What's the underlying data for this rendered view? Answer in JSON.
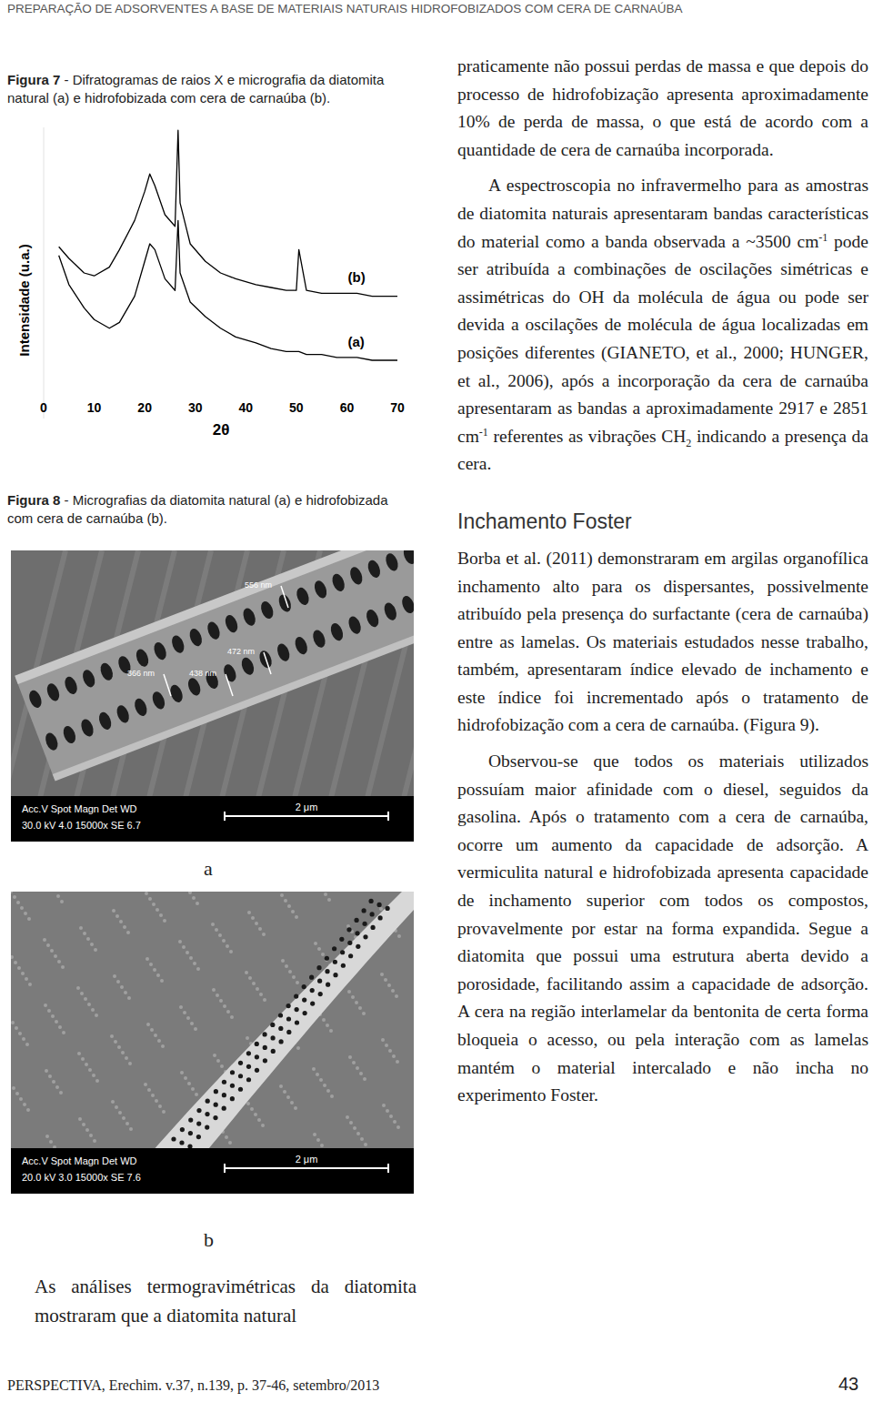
{
  "header": {
    "running_title": "PREPARAÇÃO DE ADSORVENTES A BASE DE MATERIAIS NATURAIS HIDROFOBIZADOS COM CERA DE CARNAÚBA"
  },
  "figure7": {
    "caption": {
      "label": "Figura 7",
      "text": " - Difratogramas de raios X e micrografia da diatomita natural (a) e hidrofobizada com cera de carnaúba (b)."
    }
  },
  "chart_data": {
    "type": "line",
    "x_label": "2θ",
    "y_label": "Intensidade (u.a.)",
    "x": [
      3,
      5,
      8,
      10,
      13,
      15,
      18,
      20,
      21,
      22,
      24,
      26,
      26.6,
      27,
      29,
      32,
      35,
      38,
      40,
      42,
      45,
      48,
      50,
      50.5,
      52,
      55,
      58,
      60,
      62,
      65,
      68,
      70
    ],
    "series": [
      {
        "name": "(b)",
        "color": "#000000",
        "values": [
          59,
          55,
          50,
          49,
          52,
          58,
          68,
          78,
          84,
          80,
          70,
          66,
          99,
          74,
          60,
          54,
          50,
          48,
          47,
          46,
          45,
          44,
          44,
          58,
          44,
          43,
          43,
          43,
          43,
          42,
          42,
          42
        ]
      },
      {
        "name": "(a)",
        "color": "#000000",
        "values": [
          56,
          46,
          38,
          34,
          31,
          33,
          42,
          54,
          60,
          58,
          48,
          44,
          68,
          50,
          40,
          35,
          31,
          28,
          27,
          26,
          24,
          23,
          23,
          23,
          22,
          22,
          21,
          21,
          21,
          20,
          20,
          20
        ]
      }
    ],
    "xlim": [
      0,
      70
    ],
    "xticks": [
      0,
      10,
      20,
      30,
      40,
      50,
      60,
      70
    ],
    "ylim": [
      0,
      100
    ],
    "tick_labels": "x",
    "grid": false
  },
  "figure8": {
    "caption": {
      "label": "Figura 8",
      "text": " - Micrografias da diatomita natural (a) e hidrofobizada com cera de carnaúba (b)."
    },
    "panels": [
      {
        "label": "a",
        "info_header": "Acc.V  Spot Magn   Det  WD",
        "info_values": "30.0 kV 4.0  15000x  SE  6.7",
        "scale_bar": "2 μm",
        "measurements": [
          "366 nm",
          "438 nm",
          "472 nm",
          "556 nm"
        ]
      },
      {
        "label": "b",
        "info_header": "Acc.V  Spot Magn   Det  WD",
        "info_values": "20.0 kV 3.0  15000x  SE  7.6",
        "scale_bar": "2 μm"
      }
    ]
  },
  "left_paragraph": "As análises termogravimétricas da diatomita mostraram que a diatomita natural",
  "right_column": [
    {
      "style": "paragraph",
      "runs": [
        {
          "text": "praticamente não possui perdas de massa e que depois do processo de hidrofobização apresenta aproximadamente 10% de perda de massa, o que está de acordo com a quantidade de cera de carnaúba incorporada."
        }
      ]
    },
    {
      "style": "indented",
      "runs": [
        {
          "text": "A espectroscopia no infravermelho para as amostras de diatomita naturais apresentaram bandas características do material como a banda observada a ~3500 cm"
        },
        {
          "text": "-1",
          "style": "sup"
        },
        {
          "text": " pode ser atribuída a combinações de oscilações simétricas e assimétricas do OH da molécula de água ou pode ser devida a oscilações de molécula de água localizadas em posições diferentes (GIANETO, et al., 2000; HUNGER, et al., 2006), após a incorporação da cera de carnaúba apresentaram as bandas a aproximadamente 2917 e 2851 cm"
        },
        {
          "text": "-1",
          "style": "sup"
        },
        {
          "text": " referentes as vibrações CH"
        },
        {
          "text": "2",
          "style": "sub"
        },
        {
          "text": " indicando a presença da cera."
        }
      ]
    },
    {
      "style": "heading",
      "runs": [
        {
          "text": "Inchamento Foster"
        }
      ]
    },
    {
      "style": "paragraph",
      "runs": [
        {
          "text": "Borba et al. (2011) demonstraram em argilas organofílica inchamento alto para os dispersantes, possivelmente atribuído pela presença do surfactante (cera de carnaúba) entre as lamelas. Os materiais estudados nesse trabalho, também, apresentaram índice elevado de inchamento e este índice foi incrementado após o tratamento de hidrofobização com a cera de carnaúba. (Figura 9)."
        }
      ]
    },
    {
      "style": "indented",
      "runs": [
        {
          "text": "Observou-se que todos os materiais utilizados possuíam maior afinidade com o diesel, seguidos da gasolina. Após o tratamento com a cera de carnaúba, ocorre um aumento da capacidade de adsorção. A vermiculita natural e hidrofobizada apresenta capacidade de inchamento superior com todos os compostos, provavelmente por estar na forma expandida. Segue a diatomita que possui uma estrutura aberta devido a porosidade, facilitando assim a capacidade de adsorção. A cera na região interlamelar da bentonita de certa forma bloqueia o acesso, ou pela interação com as lamelas mantém o material intercalado e não incha no experimento Foster."
        }
      ]
    }
  ],
  "footer": {
    "journal": "PERSPECTIVA, Erechim. v.37, n.139, p. 37-46, setembro/2013",
    "page": "43"
  }
}
